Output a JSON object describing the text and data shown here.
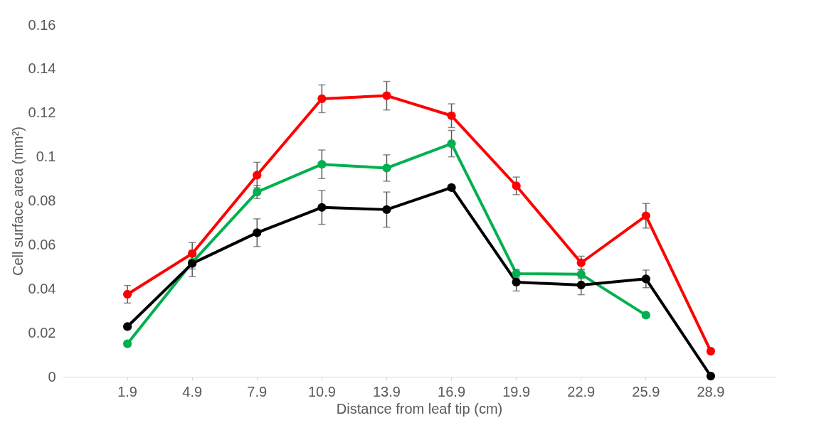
{
  "chart_data": {
    "type": "line",
    "xlabel": "Distance from leaf tip (cm)",
    "ylabel": "Cell surface area (mm²)",
    "categories": [
      "1.9",
      "4.9",
      "7.9",
      "10.9",
      "13.9",
      "16.9",
      "19.9",
      "22.9",
      "25.9",
      "28.9"
    ],
    "series": [
      {
        "color": "#ff0000",
        "values": [
          0.0375,
          0.056,
          0.0917,
          0.1264,
          0.1278,
          0.1187,
          0.0868,
          0.0518,
          0.0732,
          0.0116
        ],
        "errors": [
          0.004,
          0.005,
          0.0058,
          0.0063,
          0.0065,
          0.0054,
          0.004,
          0.003,
          0.0056,
          0.001
        ]
      },
      {
        "color": "#00b050",
        "values": [
          0.015,
          0.052,
          0.084,
          0.0966,
          0.0949,
          0.106,
          0.0469,
          0.0466,
          0.028,
          null
        ],
        "errors": [
          0.001,
          0.003,
          0.003,
          0.0065,
          0.006,
          0.006,
          0.002,
          0.002,
          0.001,
          null
        ]
      },
      {
        "color": "#000000",
        "values": [
          0.0228,
          0.0515,
          0.0655,
          0.077,
          0.076,
          0.086,
          0.043,
          0.0417,
          0.0445,
          0.0003
        ],
        "errors": [
          0.001,
          0.006,
          0.0063,
          0.0077,
          0.008,
          0.001,
          0.004,
          0.0044,
          0.004,
          0.0003
        ]
      }
    ],
    "ylim": [
      0,
      0.16
    ],
    "yticks": [
      0,
      0.02,
      0.04,
      0.06,
      0.08,
      0.1,
      0.12,
      0.14,
      0.16
    ],
    "grid": false,
    "legend": false,
    "marker": "circle",
    "line_style": "solid"
  }
}
